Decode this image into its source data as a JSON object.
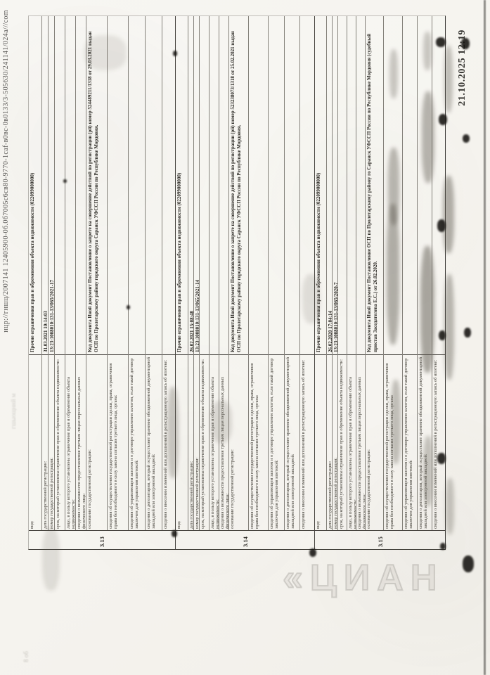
{
  "page": {
    "print_header_url": "нцр://гншц/2007141 12405900-0б.0б7005с6св80-9770-1саf-в0вс-0в0133/3-505630/241141/024а///соm",
    "print_footer_datetime": "21.10.2025 12:19",
    "watermark_text": "«ЦИАН",
    "artifact_top_center": "гшыощннй м",
    "artifact_top_left": "8 об",
    "colors": {
      "paper": "#f6f4ef",
      "ink": "#2b2924",
      "line": "#45423a"
    }
  },
  "table": {
    "row_keys": [
      "vid",
      "date",
      "regnum",
      "term",
      "person",
      "thirdparty",
      "basis",
      "deal",
      "manager",
      "depositary",
      "changes"
    ],
    "field_labels": {
      "vid": "вид:",
      "date": "дата государственной регистрации:",
      "regnum": "номер государственной регистрации:",
      "term": "срок, на который установлены ограничение прав и обременение объекта недвижимости:",
      "person": "лицо, в пользу которого установлены ограничение прав и обременение объекта недвижимости:",
      "thirdparty": "сведения о возможности предоставления третьим лицам персональных данных физического лица:",
      "basis": "основание государственной регистрации:",
      "deal": "сведения об осуществлении государственной регистрации сделки, права, ограничения права без необходимого в силу закона согласия третьего лица, органа:",
      "manager": "сведения об управляющем залогом и о договоре управления залогом, если такой договор заключен для управления ипотекой:",
      "depositary": "сведения о депозитарии, который осуществляет хранение обездвиженной документарной закладной или электронной закладной:",
      "changes": "сведения о внесении изменений или дополнений в регистрационную запись об ипотеке:"
    },
    "sections": [
      {
        "number": "3.13",
        "values": {
          "vid": "Прочие ограничения прав и обременения объекта недвижимости (022099000000)",
          "date": "31.03.2021 10:14:03",
          "regnum": "13:23:1008010:131-13/065/2021-17",
          "basis": "Код документа Иной документ Постановление о запрете на совершение действий по регистрации (рй) номер 524489211/1318 от 29.03.2021 выдан ОСП по Пролетарскому району городского округа Саранск УФССП России по Республике Мордовия."
        }
      },
      {
        "number": "3.14",
        "values": {
          "vid": "Прочие ограничения прав и обременения объекта недвижимости (022099000000)",
          "date": "26.02.2021 15:08:48",
          "regnum": "13:23:1008010:131-13/065/2021-14",
          "basis": "Код документа Иной документ Постановление о запрете на совершение действий по регистрации (рй) номер 523238073/1318 от 25.02.2021 выдан ОСП по Пролетарскому району городского округа Саранск УФССП России по Республике Мордовия."
        }
      },
      {
        "number": "3.15",
        "values": {
          "vid": "Прочие ограничения прав и обременения объекта недвижимости (022099000000)",
          "date": "26.02.2020 17:04:14",
          "regnum": "13:23:1008010:131-13/065/2020-7",
          "basis": "Код документа Иной документ Постановление ОСП по Пролетарскому району го Саранск УФССП России по Республике Мордовия (судебный пристав Заседателева Е.С.) от 26.02.2020."
        }
      }
    ]
  }
}
